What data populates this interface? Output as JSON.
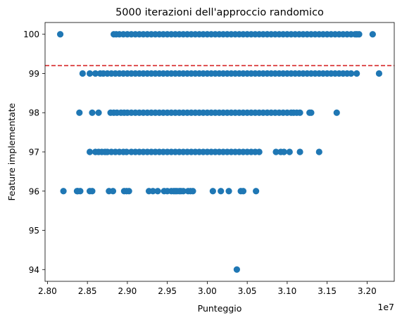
{
  "chart_data": {
    "type": "scatter",
    "title": "5000 iterazioni dell'approccio randomico",
    "xlabel": "Punteggio",
    "ylabel": "Feature implementate",
    "x_offset_label": "1e7",
    "x_ticks": [
      28000000,
      28500000,
      29000000,
      29500000,
      30000000,
      30500000,
      31000000,
      31500000,
      32000000
    ],
    "x_tick_labels": [
      "2.80",
      "2.85",
      "2.90",
      "2.95",
      "3.00",
      "3.05",
      "3.10",
      "3.15",
      "3.20"
    ],
    "y_ticks": [
      94,
      95,
      96,
      97,
      98,
      99,
      100
    ],
    "y_tick_labels": [
      "94",
      "95",
      "96",
      "97",
      "98",
      "99",
      "100"
    ],
    "xlim": [
      27970000,
      32340000
    ],
    "ylim": [
      93.7,
      100.3
    ],
    "grid": false,
    "marker_color": "#1f77b4",
    "threshold_line": {
      "y": 99.2,
      "color": "#d62728",
      "style": "dashed"
    },
    "series": [
      {
        "points_by_level": [
          {
            "y": 100,
            "x": [
              28160000,
              28830000,
              28860000,
              28900000,
              28950000,
              29000000,
              29050000,
              29100000,
              29150000,
              29200000,
              29250000,
              29300000,
              29350000,
              29400000,
              29450000,
              29500000,
              29550000,
              29600000,
              29650000,
              29700000,
              29750000,
              29800000,
              29850000,
              29900000,
              29950000,
              30000000,
              30050000,
              30100000,
              30150000,
              30200000,
              30250000,
              30300000,
              30350000,
              30400000,
              30450000,
              30500000,
              30550000,
              30600000,
              30650000,
              30700000,
              30750000,
              30800000,
              30850000,
              30900000,
              30950000,
              31000000,
              31050000,
              31100000,
              31150000,
              31200000,
              31250000,
              31300000,
              31350000,
              31400000,
              31450000,
              31500000,
              31550000,
              31600000,
              31650000,
              31700000,
              31750000,
              31800000,
              31850000,
              31870000,
              31900000,
              32070000
            ]
          },
          {
            "y": 99,
            "x": [
              28440000,
              28530000,
              28600000,
              28660000,
              28700000,
              28750000,
              28800000,
              28850000,
              28900000,
              28950000,
              29000000,
              29050000,
              29100000,
              29150000,
              29200000,
              29250000,
              29300000,
              29350000,
              29400000,
              29450000,
              29500000,
              29550000,
              29600000,
              29650000,
              29700000,
              29750000,
              29800000,
              29850000,
              29900000,
              29950000,
              30000000,
              30050000,
              30100000,
              30150000,
              30200000,
              30250000,
              30300000,
              30350000,
              30400000,
              30450000,
              30500000,
              30550000,
              30600000,
              30650000,
              30700000,
              30750000,
              30800000,
              30850000,
              30900000,
              30950000,
              31000000,
              31050000,
              31100000,
              31150000,
              31200000,
              31250000,
              31300000,
              31350000,
              31400000,
              31450000,
              31500000,
              31550000,
              31600000,
              31650000,
              31700000,
              31750000,
              31800000,
              31870000,
              32150000
            ]
          },
          {
            "y": 98,
            "x": [
              28400000,
              28560000,
              28640000,
              28790000,
              28830000,
              28870000,
              28920000,
              28960000,
              29000000,
              29050000,
              29100000,
              29150000,
              29200000,
              29250000,
              29300000,
              29350000,
              29400000,
              29450000,
              29500000,
              29550000,
              29600000,
              29650000,
              29700000,
              29750000,
              29800000,
              29850000,
              29900000,
              29950000,
              30000000,
              30050000,
              30100000,
              30150000,
              30200000,
              30250000,
              30300000,
              30350000,
              30400000,
              30450000,
              30500000,
              30550000,
              30600000,
              30650000,
              30700000,
              30750000,
              30800000,
              30850000,
              30900000,
              30950000,
              31000000,
              31050000,
              31080000,
              31120000,
              31160000,
              31280000,
              31300000,
              31620000
            ]
          },
          {
            "y": 97,
            "x": [
              28530000,
              28600000,
              28640000,
              28680000,
              28720000,
              28750000,
              28800000,
              28850000,
              28900000,
              28950000,
              28990000,
              29050000,
              29100000,
              29150000,
              29200000,
              29250000,
              29300000,
              29350000,
              29400000,
              29450000,
              29500000,
              29550000,
              29600000,
              29650000,
              29700000,
              29750000,
              29800000,
              29850000,
              29900000,
              29950000,
              30000000,
              30050000,
              30100000,
              30150000,
              30200000,
              30250000,
              30300000,
              30350000,
              30400000,
              30450000,
              30500000,
              30550000,
              30600000,
              30650000,
              30860000,
              30920000,
              30960000,
              31030000,
              31160000,
              31400000
            ]
          },
          {
            "y": 96,
            "x": [
              28200000,
              28370000,
              28380000,
              28410000,
              28530000,
              28560000,
              28770000,
              28820000,
              28960000,
              28990000,
              29020000,
              29270000,
              29320000,
              29380000,
              29460000,
              29500000,
              29550000,
              29580000,
              29600000,
              29620000,
              29650000,
              29670000,
              29700000,
              29760000,
              29790000,
              29820000,
              30070000,
              30170000,
              30270000,
              30420000,
              30450000,
              30610000
            ]
          },
          {
            "y": 94,
            "x": [
              30370000
            ]
          }
        ]
      }
    ]
  }
}
